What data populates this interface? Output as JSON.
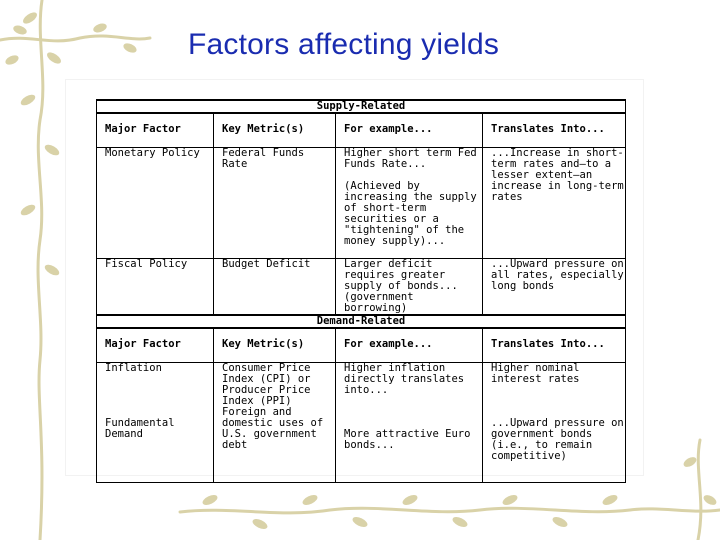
{
  "slide": {
    "title": "Factors affecting yields"
  },
  "table": {
    "sections": [
      {
        "header": "Supply-Related",
        "columns": [
          "Major Factor",
          "Key Metric(s)",
          "For example...",
          "Translates Into..."
        ],
        "rows": [
          {
            "factor": "Monetary Policy",
            "metric": "Federal Funds Rate",
            "example": "Higher short term Fed Funds Rate...\n\n(Achieved by increasing the supply of short-term securities or a \"tightening\" of the money supply)...",
            "translates": "...Increase in short-term rates and—to a lesser extent—an increase in long-term rates"
          },
          {
            "factor": "Fiscal Policy",
            "metric": "Budget Deficit",
            "example": "Larger deficit requires greater supply of bonds... (government borrowing)",
            "translates": "...Upward pressure on all rates, especially long bonds"
          }
        ]
      },
      {
        "header": "Demand-Related",
        "columns": [
          "Major Factor",
          "Key Metric(s)",
          "For example...",
          "Translates Into..."
        ],
        "rows": [
          {
            "factor": "Inflation\n\n\n\n\nFundamental Demand",
            "metric": "Consumer Price Index (CPI) or Producer Price Index (PPI)\nForeign and domestic uses of U.S. government debt",
            "example": "Higher inflation directly translates into...\n\n\n\nMore attractive Euro bonds...",
            "translates": "Higher nominal interest rates\n\n\n\n...Upward pressure on government bonds (i.e., to remain competitive)"
          }
        ]
      }
    ]
  }
}
